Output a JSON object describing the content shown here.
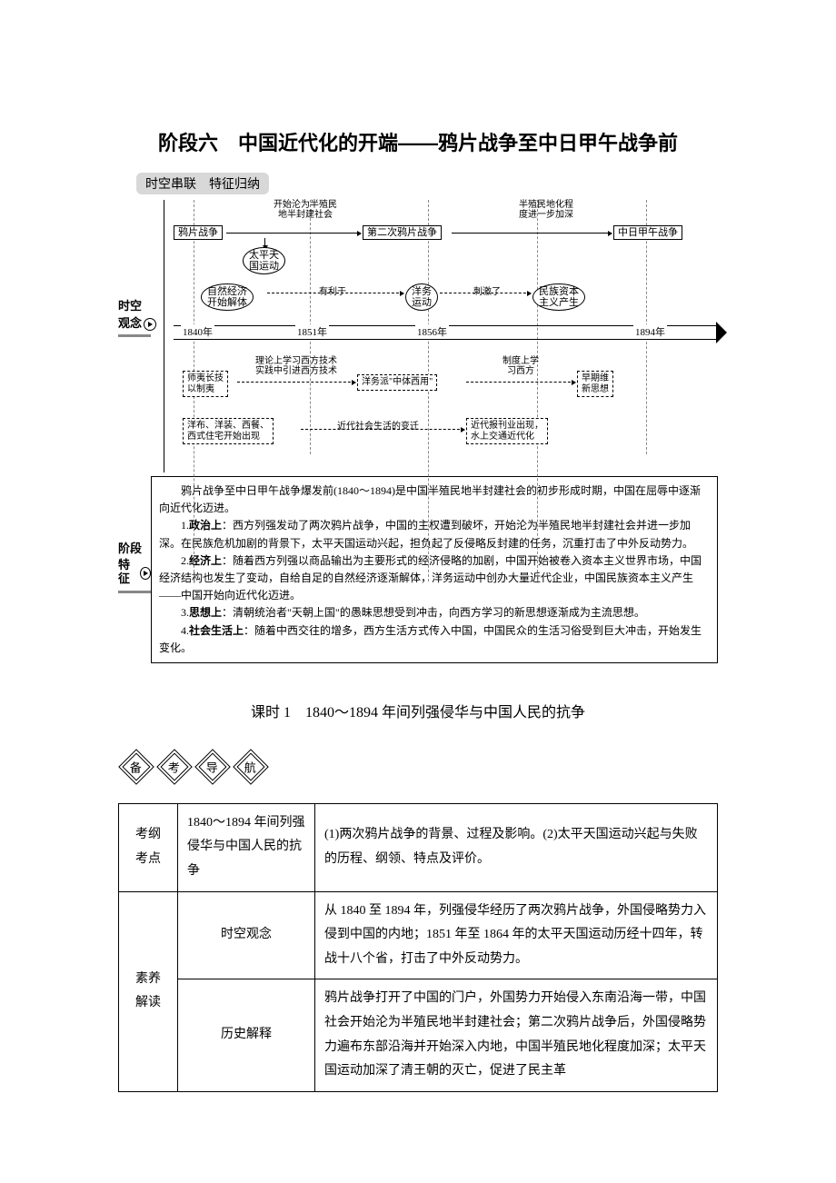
{
  "title": "阶段六　中国近代化的开端——鸦片战争至中日甲午战争前",
  "section_header": "时空串联　特征归纳",
  "left1_a": "时空",
  "left1_b": "观念",
  "left2_a": "阶段",
  "left2_b": "特征",
  "flow": {
    "b1": "鸦片战争",
    "b2": "第二次鸦片战争",
    "b3": "中日甲午战争",
    "o1": "太平天\n国运动",
    "o2": "自然经济\n开始解体",
    "o3": "洋务\n运动",
    "o4": "民族资本\n主义产生",
    "n1": "开始沦为半殖民\n地半封建社会",
    "n2": "半殖民地化程\n度进一步加深",
    "n3": "有利于",
    "n4": "刺激了",
    "y1": "1840年",
    "y2": "1851年",
    "y3": "1856年",
    "y4": "1894年",
    "d1": "师夷长技\n以制夷",
    "d2": "理论上学习西方技术\n实践中引进西方技术",
    "d3": "洋务派\"中体西用\"",
    "d4": "制度上学\n习西方",
    "d5": "早期维\n新思想",
    "d6": "洋布、洋装、西餐、\n西式住宅开始出现",
    "d7": "近代社会生活的变迁",
    "d8": "近代报刊业出现，\n水上交通近代化"
  },
  "stage_paras": {
    "intro": "鸦片战争至中日甲午战争爆发前(1840～1894)是中国半殖民地半封建社会的初步形成时期，中国在屈辱中逐渐向近代化迈进。",
    "p1_label": "政治上",
    "p1": "：西方列强发动了两次鸦片战争，中国的主权遭到破坏，开始沦为半殖民地半封建社会并进一步加深。在民族危机加剧的背景下，太平天国运动兴起，担负起了反侵略反封建的任务，沉重打击了中外反动势力。",
    "p2_label": "经济上",
    "p2": "：随着西方列强以商品输出为主要形式的经济侵略的加剧，中国开始被卷入资本主义世界市场，中国经济结构也发生了变动，自给自足的自然经济逐渐解体，洋务运动中创办大量近代企业，中国民族资本主义产生——中国开始向近代化迈进。",
    "p3_label": "思想上",
    "p3": "：清朝统治者\"天朝上国\"的愚昧思想受到冲击，向西方学习的新思想逐渐成为主流思想。",
    "p4_label": "社会生活上",
    "p4": "：随着中西交往的增多，西方生活方式传入中国，中国民众的生活习俗受到巨大冲击，开始发生变化。"
  },
  "subtitle": "课时 1　1840～1894 年间列强侵华与中国人民的抗争",
  "nav": {
    "a": "备",
    "b": "考",
    "c": "导",
    "d": "航"
  },
  "table": {
    "r1c1": "考纲\n考点",
    "r1c2": "1840～1894 年间列强侵华与中国人民的抗争",
    "r1c3": "(1)两次鸦片战争的背景、过程及影响。(2)太平天国运动兴起与失败的历程、纲领、特点及评价。",
    "r2c1": "素养\n解读",
    "r2c2": "时空观念",
    "r2c3": "从 1840 至 1894 年，列强侵华经历了两次鸦片战争，外国侵略势力入侵到中国的内地；1851 年至 1864 年的太平天国运动历经十四年，转战十八个省，打击了中外反动势力。",
    "r3c2": "历史解释",
    "r3c3": "鸦片战争打开了中国的门户，外国势力开始侵入东南沿海一带，中国社会开始沦为半殖民地半封建社会；第二次鸦片战争后，外国侵略势力遍布东部沿海并开始深入内地，中国半殖民地化程度加深；太平天国运动加深了清王朝的灭亡，促进了民主革"
  }
}
